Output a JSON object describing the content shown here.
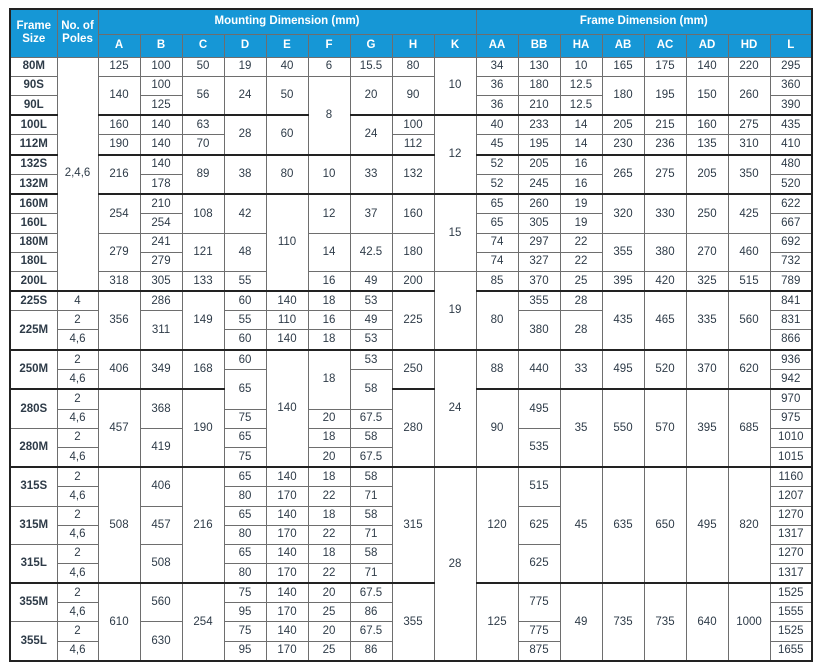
{
  "header": {
    "frame_size": "Frame\nSize",
    "poles": "No. of\nPoles",
    "mounting": "Mounting Dimension (mm)",
    "frame": "Frame Dimension (mm)",
    "mounting_cols": [
      "A",
      "B",
      "C",
      "D",
      "E",
      "F",
      "G",
      "H",
      "K"
    ],
    "frame_cols": [
      "AA",
      "BB",
      "HA",
      "AB",
      "AC",
      "AD",
      "HD",
      "L"
    ]
  },
  "colors": {
    "header_bg": "#1697d6",
    "header_text": "#ffffff",
    "grid": "#6e6e6e",
    "group_line": "#222222",
    "text": "#2e3b48"
  },
  "table": {
    "col_keys": [
      "frame",
      "poles",
      "A",
      "B",
      "C",
      "D",
      "E",
      "F",
      "G",
      "H",
      "K",
      "AA",
      "BB",
      "HA",
      "AB",
      "AC",
      "AD",
      "HD",
      "L"
    ],
    "group_rows": [
      4,
      6,
      8,
      13,
      16,
      18,
      22,
      28
    ],
    "rows": [
      [
        "80M",
        [
          "2,4,6",
          12
        ],
        "125",
        "100",
        "50",
        "19",
        "40",
        "6",
        "15.5",
        "80",
        [
          "10",
          3
        ],
        "34",
        "130",
        "10",
        "165",
        "175",
        "140",
        "220",
        "295"
      ],
      [
        "90S",
        [
          "140",
          2
        ],
        "100",
        [
          "56",
          2
        ],
        [
          "24",
          2
        ],
        [
          "50",
          2
        ],
        [
          "8",
          4
        ],
        [
          "20",
          2
        ],
        [
          "90",
          2
        ],
        "36",
        "180",
        "12.5",
        [
          "180",
          2
        ],
        [
          "195",
          2
        ],
        [
          "150",
          2
        ],
        [
          "260",
          2
        ],
        "360"
      ],
      [
        "90L",
        "125",
        "36",
        "210",
        "12.5",
        "390"
      ],
      [
        "100L",
        "160",
        "140",
        "63",
        [
          "28",
          2
        ],
        [
          "60",
          2
        ],
        [
          "24",
          2
        ],
        "100",
        [
          "12",
          4
        ],
        "40",
        "233",
        "14",
        "205",
        "215",
        "160",
        "275",
        "435"
      ],
      [
        "112M",
        "190",
        "140",
        "70",
        "112",
        "45",
        "195",
        "14",
        "230",
        "236",
        "135",
        "310",
        "410"
      ],
      [
        "132S",
        [
          "216",
          2
        ],
        "140",
        [
          "89",
          2
        ],
        [
          "38",
          2
        ],
        [
          "80",
          2
        ],
        [
          "10",
          2
        ],
        [
          "33",
          2
        ],
        [
          "132",
          2
        ],
        "52",
        "205",
        "16",
        [
          "265",
          2
        ],
        [
          "275",
          2
        ],
        [
          "205",
          2
        ],
        [
          "350",
          2
        ],
        "480"
      ],
      [
        "132M",
        "178",
        "52",
        "245",
        "16",
        "520"
      ],
      [
        "160M",
        [
          "254",
          2
        ],
        "210",
        [
          "108",
          2
        ],
        [
          "42",
          2
        ],
        [
          "110",
          5
        ],
        [
          "12",
          2
        ],
        [
          "37",
          2
        ],
        [
          "160",
          2
        ],
        [
          "15",
          4
        ],
        "65",
        "260",
        "19",
        [
          "320",
          2
        ],
        [
          "330",
          2
        ],
        [
          "250",
          2
        ],
        [
          "425",
          2
        ],
        "622"
      ],
      [
        "160L",
        "254",
        "65",
        "305",
        "19",
        "667"
      ],
      [
        "180M",
        [
          "279",
          2
        ],
        "241",
        [
          "121",
          2
        ],
        [
          "48",
          2
        ],
        [
          "14",
          2
        ],
        [
          "42.5",
          2
        ],
        [
          "180",
          2
        ],
        "74",
        "297",
        "22",
        [
          "355",
          2
        ],
        [
          "380",
          2
        ],
        [
          "270",
          2
        ],
        [
          "460",
          2
        ],
        "692"
      ],
      [
        "180L",
        "279",
        "74",
        "327",
        "22",
        "732"
      ],
      [
        "200L",
        "318",
        "305",
        "133",
        "55",
        "16",
        "49",
        "200",
        [
          "19",
          4
        ],
        "85",
        "370",
        "25",
        "395",
        "420",
        "325",
        "515",
        "789"
      ],
      [
        "225S",
        "4",
        [
          "356",
          3
        ],
        "286",
        [
          "149",
          3
        ],
        "60",
        "140",
        "18",
        "53",
        [
          "225",
          3
        ],
        [
          "80",
          3
        ],
        "355",
        "28",
        [
          "435",
          3
        ],
        [
          "465",
          3
        ],
        [
          "335",
          3
        ],
        [
          "560",
          3
        ],
        "841"
      ],
      [
        [
          "225M",
          2
        ],
        "2",
        [
          "311",
          2
        ],
        "55",
        "110",
        "16",
        "49",
        [
          "380",
          2
        ],
        [
          "28",
          2
        ],
        "831"
      ],
      [
        "4,6",
        "60",
        "140",
        "18",
        "53",
        "866"
      ],
      [
        [
          "250M",
          2
        ],
        "2",
        [
          "406",
          2
        ],
        [
          "349",
          2
        ],
        [
          "168",
          2
        ],
        "60",
        [
          "140",
          6
        ],
        [
          "18",
          3
        ],
        "53",
        [
          "250",
          2
        ],
        [
          "24",
          6
        ],
        [
          "88",
          2
        ],
        [
          "440",
          2
        ],
        [
          "33",
          2
        ],
        [
          "495",
          2
        ],
        [
          "520",
          2
        ],
        [
          "370",
          2
        ],
        [
          "620",
          2
        ],
        "936"
      ],
      [
        "4,6",
        [
          "65",
          2
        ],
        [
          "58",
          2
        ],
        "942"
      ],
      [
        [
          "280S",
          2
        ],
        "2",
        [
          "457",
          4
        ],
        [
          "368",
          2
        ],
        [
          "190",
          4
        ],
        [
          "280",
          4
        ],
        [
          "90",
          4
        ],
        [
          "495",
          2
        ],
        [
          "35",
          4
        ],
        [
          "550",
          4
        ],
        [
          "570",
          4
        ],
        [
          "395",
          4
        ],
        [
          "685",
          4
        ],
        "970"
      ],
      [
        "4,6",
        "75",
        "20",
        "67.5",
        "975"
      ],
      [
        [
          "280M",
          2
        ],
        "2",
        [
          "419",
          2
        ],
        "65",
        "18",
        "58",
        [
          "535",
          2
        ],
        "1010"
      ],
      [
        "4,6",
        "75",
        "20",
        "67.5",
        "1015"
      ],
      [
        [
          "315S",
          2
        ],
        "2",
        [
          "508",
          6
        ],
        [
          "406",
          2
        ],
        [
          "216",
          6
        ],
        "65",
        "140",
        "18",
        "58",
        [
          "315",
          6
        ],
        [
          "28",
          10
        ],
        [
          "120",
          6
        ],
        [
          "515",
          2
        ],
        [
          "45",
          6
        ],
        [
          "635",
          6
        ],
        [
          "650",
          6
        ],
        [
          "495",
          6
        ],
        [
          "820",
          6
        ],
        "1160"
      ],
      [
        "4,6",
        "80",
        "170",
        "22",
        "71",
        "1207"
      ],
      [
        [
          "315M",
          2
        ],
        "2",
        [
          "457",
          2
        ],
        "65",
        "140",
        "18",
        "58",
        [
          "625",
          2
        ],
        "1270"
      ],
      [
        "4,6",
        "80",
        "170",
        "22",
        "71",
        "1317"
      ],
      [
        [
          "315L",
          2
        ],
        "2",
        [
          "508",
          2
        ],
        "65",
        "140",
        "18",
        "58",
        [
          "625",
          2
        ],
        "1270"
      ],
      [
        "4,6",
        "80",
        "170",
        "22",
        "71",
        "1317"
      ],
      [
        [
          "355M",
          2
        ],
        "2",
        [
          "610",
          4
        ],
        [
          "560",
          2
        ],
        [
          "254",
          4
        ],
        "75",
        "140",
        "20",
        "67.5",
        [
          "355",
          4
        ],
        [
          "125",
          4
        ],
        [
          "775",
          2
        ],
        [
          "49",
          4
        ],
        [
          "735",
          4
        ],
        [
          "735",
          4
        ],
        [
          "640",
          4
        ],
        [
          "1000",
          4
        ],
        "1525"
      ],
      [
        "4,6",
        "95",
        "170",
        "25",
        "86",
        "1555"
      ],
      [
        [
          "355L",
          2
        ],
        "2",
        [
          "630",
          2
        ],
        "75",
        "140",
        "20",
        "67.5",
        "775",
        "1525"
      ],
      [
        "4,6",
        "95",
        "170",
        "25",
        "86",
        "875",
        "1655"
      ]
    ]
  }
}
